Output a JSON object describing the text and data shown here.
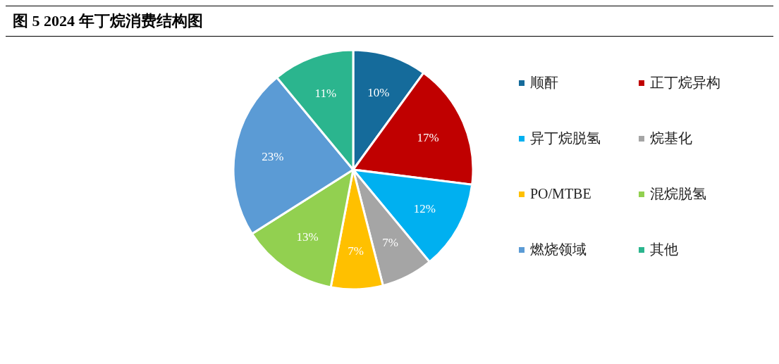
{
  "chart_data": {
    "type": "pie",
    "title": "图 5 2024 年丁烷消费结构图",
    "categories": [
      "顺酐",
      "正丁烷异构",
      "异丁烷脱氢",
      "烷基化",
      "PO/MTBE",
      "混烷脱氢",
      "燃烧领域",
      "其他"
    ],
    "values": [
      10,
      17,
      12,
      7,
      7,
      13,
      23,
      11
    ],
    "value_labels": [
      "10%",
      "17%",
      "12%",
      "7%",
      "7%",
      "13%",
      "23%",
      "11%"
    ],
    "colors": [
      "#156b9b",
      "#c00000",
      "#00b0f0",
      "#a5a5a5",
      "#ffc000",
      "#92d050",
      "#5b9bd5",
      "#2bb58e"
    ],
    "legend": "right"
  }
}
